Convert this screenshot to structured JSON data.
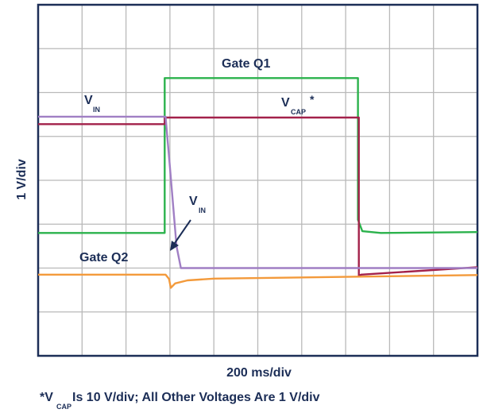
{
  "chart_data": {
    "type": "line",
    "xlabel": "200 ms/div",
    "ylabel": "1 V/div",
    "footnote": {
      "prefix": "*V",
      "subscript": "CAP",
      "rest": " Is 10 V/div; All Other Voltages Are 1 V/div"
    },
    "grid": {
      "x_divisions": 10,
      "y_divisions": 8,
      "visible": true
    },
    "xlim": [
      0,
      10
    ],
    "ylim": [
      0,
      8
    ],
    "series": [
      {
        "name": "Gate Q1",
        "color": "#2bb24c",
        "x": [
          0,
          2.88,
          2.88,
          7.28,
          7.28,
          7.38,
          7.8,
          10
        ],
        "y": [
          2.8,
          2.8,
          6.33,
          6.33,
          3.1,
          2.84,
          2.8,
          2.82
        ]
      },
      {
        "name": "V_CAP",
        "color": "#a3214a",
        "x": [
          0,
          2.88,
          2.88,
          7.3,
          7.3,
          7.35,
          10
        ],
        "y": [
          5.28,
          5.28,
          5.43,
          5.43,
          1.82,
          1.85,
          2.02
        ]
      },
      {
        "name": "V_IN",
        "color": "#a07fc4",
        "x": [
          0,
          2.9,
          3.0,
          3.15,
          3.25,
          10
        ],
        "y": [
          5.45,
          5.45,
          4.3,
          2.5,
          2.0,
          2.0
        ]
      },
      {
        "name": "Gate Q2",
        "color": "#f39a3b",
        "x": [
          0,
          2.9,
          2.98,
          3.02,
          3.12,
          3.4,
          4.0,
          7.0,
          10
        ],
        "y": [
          1.85,
          1.85,
          1.75,
          1.55,
          1.65,
          1.72,
          1.76,
          1.8,
          1.84
        ]
      }
    ],
    "annotations": [
      {
        "text": "Gate Q1"
      },
      {
        "text": "V",
        "sub": "IN"
      },
      {
        "text": "V",
        "sub": "CAP",
        "sup": "*"
      },
      {
        "text": "V",
        "sub": "IN"
      },
      {
        "text": "Gate Q2"
      }
    ]
  }
}
